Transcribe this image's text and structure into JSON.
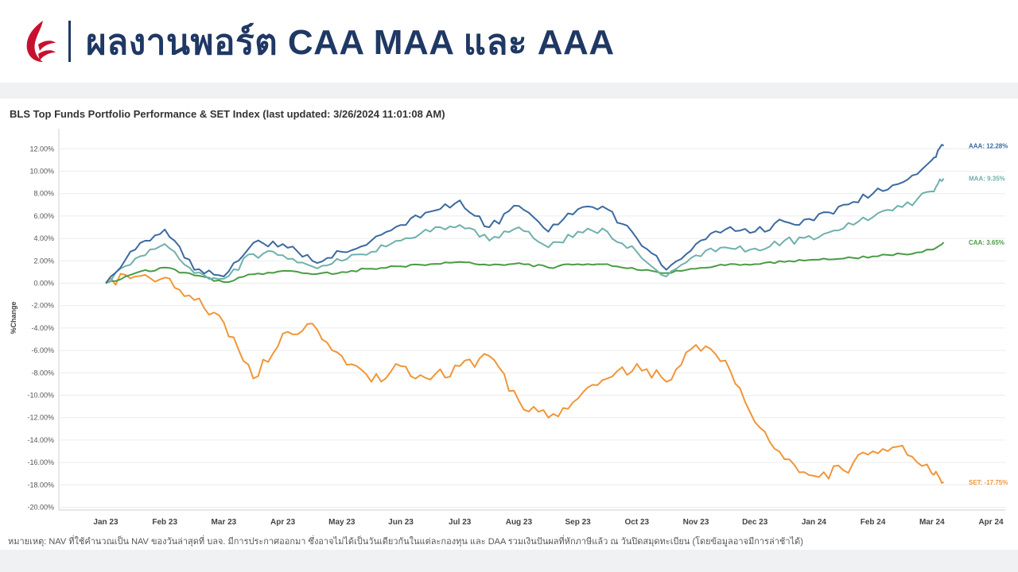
{
  "header": {
    "title": "ผลงานพอร์ต CAA MAA และ AAA"
  },
  "colors": {
    "title": "#1f3864",
    "logo_red": "#c8102e"
  },
  "note": "หมายเหตุ: NAV ที่ใช้คำนวณเป็น NAV ของวันล่าสุดที่ บลจ. มีการประกาศออกมา ซึ่งอาจไม่ได้เป็นวันเดียวกันในแต่ละกองทุน และ DAA รวมเงินปันผลที่หักภาษีแล้ว ณ วันปิดสมุดทะเบียน (โดยข้อมูลอาจมีการล่าช้าได้)",
  "chart_data": {
    "type": "line",
    "title": "BLS Top Funds Portfolio Performance & SET Index (last updated: 3/26/2024 11:01:08 AM)",
    "ylabel": "%Change",
    "xlabel": "",
    "ylim": [
      -20,
      13
    ],
    "yticks": [
      12,
      10,
      8,
      6,
      4,
      2,
      0,
      -2,
      -4,
      -6,
      -8,
      -10,
      -12,
      -14,
      -16,
      -18,
      -20
    ],
    "ytick_labels": [
      "12.00%",
      "10.00%",
      "8.00%",
      "6.00%",
      "4.00%",
      "2.00%",
      "0.00%",
      "-2.00%",
      "-4.00%",
      "-6.00%",
      "-8.00%",
      "-10.00%",
      "-12.00%",
      "-14.00%",
      "-16.00%",
      "-18.00%",
      "-20.00%"
    ],
    "categories": [
      "Jan 23",
      "Feb 23",
      "Mar 23",
      "Apr 23",
      "May 23",
      "Jun 23",
      "Jul 23",
      "Aug 23",
      "Sep 23",
      "Oct 23",
      "Nov 23",
      "Dec 23",
      "Jan 24",
      "Feb 24",
      "Mar 24",
      "Apr 24"
    ],
    "x": [
      0,
      0.5,
      1,
      1.5,
      2,
      2.5,
      3,
      3.5,
      4,
      4.5,
      5,
      5.5,
      6,
      6.5,
      7,
      7.5,
      8,
      8.5,
      9,
      9.5,
      10,
      10.5,
      11,
      11.5,
      12,
      12.5,
      13,
      13.5,
      14,
      14.2
    ],
    "series": [
      {
        "name": "AAA",
        "end_label": "AAA: 12.28%",
        "color": "#3c6aa0",
        "values": [
          0,
          3.0,
          4.8,
          1.2,
          0.6,
          3.6,
          3.5,
          2.0,
          2.8,
          3.8,
          5.2,
          6.4,
          7.4,
          5.0,
          6.9,
          4.6,
          6.6,
          6.6,
          4.0,
          1.2,
          3.5,
          4.8,
          4.6,
          5.5,
          5.6,
          7.0,
          8.0,
          9.0,
          11.0,
          12.28
        ]
      },
      {
        "name": "MAA",
        "end_label": "MAA: 9.35%",
        "color": "#6fb1ad",
        "values": [
          0,
          2.2,
          3.5,
          0.9,
          0.4,
          2.6,
          2.5,
          1.5,
          2.0,
          2.8,
          3.8,
          4.6,
          5.2,
          3.8,
          5.0,
          3.2,
          4.6,
          4.6,
          2.8,
          0.6,
          2.5,
          3.2,
          3.1,
          3.8,
          3.9,
          4.9,
          5.9,
          6.8,
          8.2,
          9.35
        ]
      },
      {
        "name": "CAA",
        "end_label": "CAA: 3.65%",
        "color": "#4a9c45",
        "values": [
          0,
          0.9,
          1.4,
          0.7,
          0.1,
          0.8,
          1.1,
          0.8,
          1.0,
          1.3,
          1.5,
          1.7,
          1.9,
          1.6,
          1.8,
          1.4,
          1.7,
          1.7,
          1.2,
          0.9,
          1.3,
          1.6,
          1.7,
          1.9,
          2.1,
          2.2,
          2.4,
          2.6,
          3.0,
          3.65
        ]
      },
      {
        "name": "SET",
        "end_label": "SET: -17.75%",
        "color": "#f0963a",
        "values": [
          0,
          0.6,
          0.5,
          -1.5,
          -3.5,
          -8.5,
          -4.5,
          -3.6,
          -6.5,
          -8.8,
          -7.4,
          -8.6,
          -7.4,
          -6.5,
          -10.5,
          -12.0,
          -10.3,
          -8.5,
          -7.2,
          -8.8,
          -5.5,
          -6.9,
          -12.4,
          -15.7,
          -17.2,
          -16.7,
          -15.0,
          -14.5,
          -17.0,
          -17.75
        ]
      }
    ]
  }
}
